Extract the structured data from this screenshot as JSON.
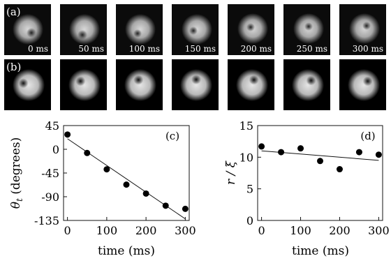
{
  "panels": {
    "a": {
      "label": "(a)",
      "frames": [
        {
          "time": "0 ms"
        },
        {
          "time": "50 ms"
        },
        {
          "time": "100 ms"
        },
        {
          "time": "150 ms"
        },
        {
          "time": "200 ms"
        },
        {
          "time": "250 ms"
        },
        {
          "time": "300 ms"
        }
      ]
    },
    "b": {
      "label": "(b)",
      "vortex_positions": [
        {
          "angle_deg": 200
        },
        {
          "angle_deg": 225
        },
        {
          "angle_deg": 250
        },
        {
          "angle_deg": 270
        },
        {
          "angle_deg": 290
        },
        {
          "angle_deg": 305
        },
        {
          "angle_deg": 315
        }
      ]
    }
  },
  "chart_data": [
    {
      "type": "scatter",
      "panel_label": "(c)",
      "xlabel": "time (ms)",
      "ylabel": "θt (degrees)",
      "ylabel_main": "θ",
      "ylabel_sub": "t",
      "ylabel_rest": " (degrees)",
      "xlim": [
        -10,
        310
      ],
      "ylim": [
        -135,
        45
      ],
      "xticks": [
        0,
        100,
        200,
        300
      ],
      "yticks": [
        45,
        0,
        -45,
        -90,
        -135
      ],
      "xtick_labels": [
        "0",
        "100",
        "200",
        "300"
      ],
      "ytick_labels": [
        "45",
        "0",
        "-45",
        "-90",
        "-135"
      ],
      "points": [
        {
          "x": 0,
          "y": 28
        },
        {
          "x": 50,
          "y": -7
        },
        {
          "x": 100,
          "y": -38
        },
        {
          "x": 150,
          "y": -67
        },
        {
          "x": 200,
          "y": -84
        },
        {
          "x": 250,
          "y": -107
        },
        {
          "x": 300,
          "y": -113
        }
      ],
      "fit_line": [
        {
          "x": 0,
          "y": 20
        },
        {
          "x": 300,
          "y": -132
        }
      ]
    },
    {
      "type": "scatter",
      "panel_label": "(d)",
      "xlabel": "time (ms)",
      "ylabel": "r / ξ",
      "ylabel_main": "r / ξ",
      "xlim": [
        -10,
        310
      ],
      "ylim": [
        0,
        15
      ],
      "xticks": [
        0,
        100,
        200,
        300
      ],
      "yticks": [
        0,
        5,
        10,
        15
      ],
      "xtick_labels": [
        "0",
        "100",
        "200",
        "300"
      ],
      "ytick_labels": [
        "0",
        "5",
        "10",
        "15"
      ],
      "points": [
        {
          "x": 0,
          "y": 11.7
        },
        {
          "x": 50,
          "y": 10.8
        },
        {
          "x": 100,
          "y": 11.4
        },
        {
          "x": 150,
          "y": 9.4
        },
        {
          "x": 200,
          "y": 8.1
        },
        {
          "x": 250,
          "y": 10.8
        },
        {
          "x": 300,
          "y": 10.4
        }
      ],
      "fit_line": [
        {
          "x": 0,
          "y": 11.0
        },
        {
          "x": 300,
          "y": 9.5
        }
      ]
    }
  ]
}
